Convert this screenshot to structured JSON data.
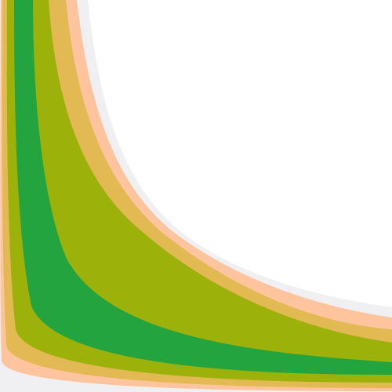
{
  "graphic": {
    "background": "#ffffff",
    "bands": [
      {
        "name": "outer-gray-band",
        "color": "#f0f0f2"
      },
      {
        "name": "peach-band",
        "color": "#fec49e"
      },
      {
        "name": "gold-band",
        "color": "#e2b953"
      },
      {
        "name": "olive-band",
        "color": "#9db10b"
      },
      {
        "name": "green-band",
        "color": "#24a43f"
      }
    ]
  }
}
